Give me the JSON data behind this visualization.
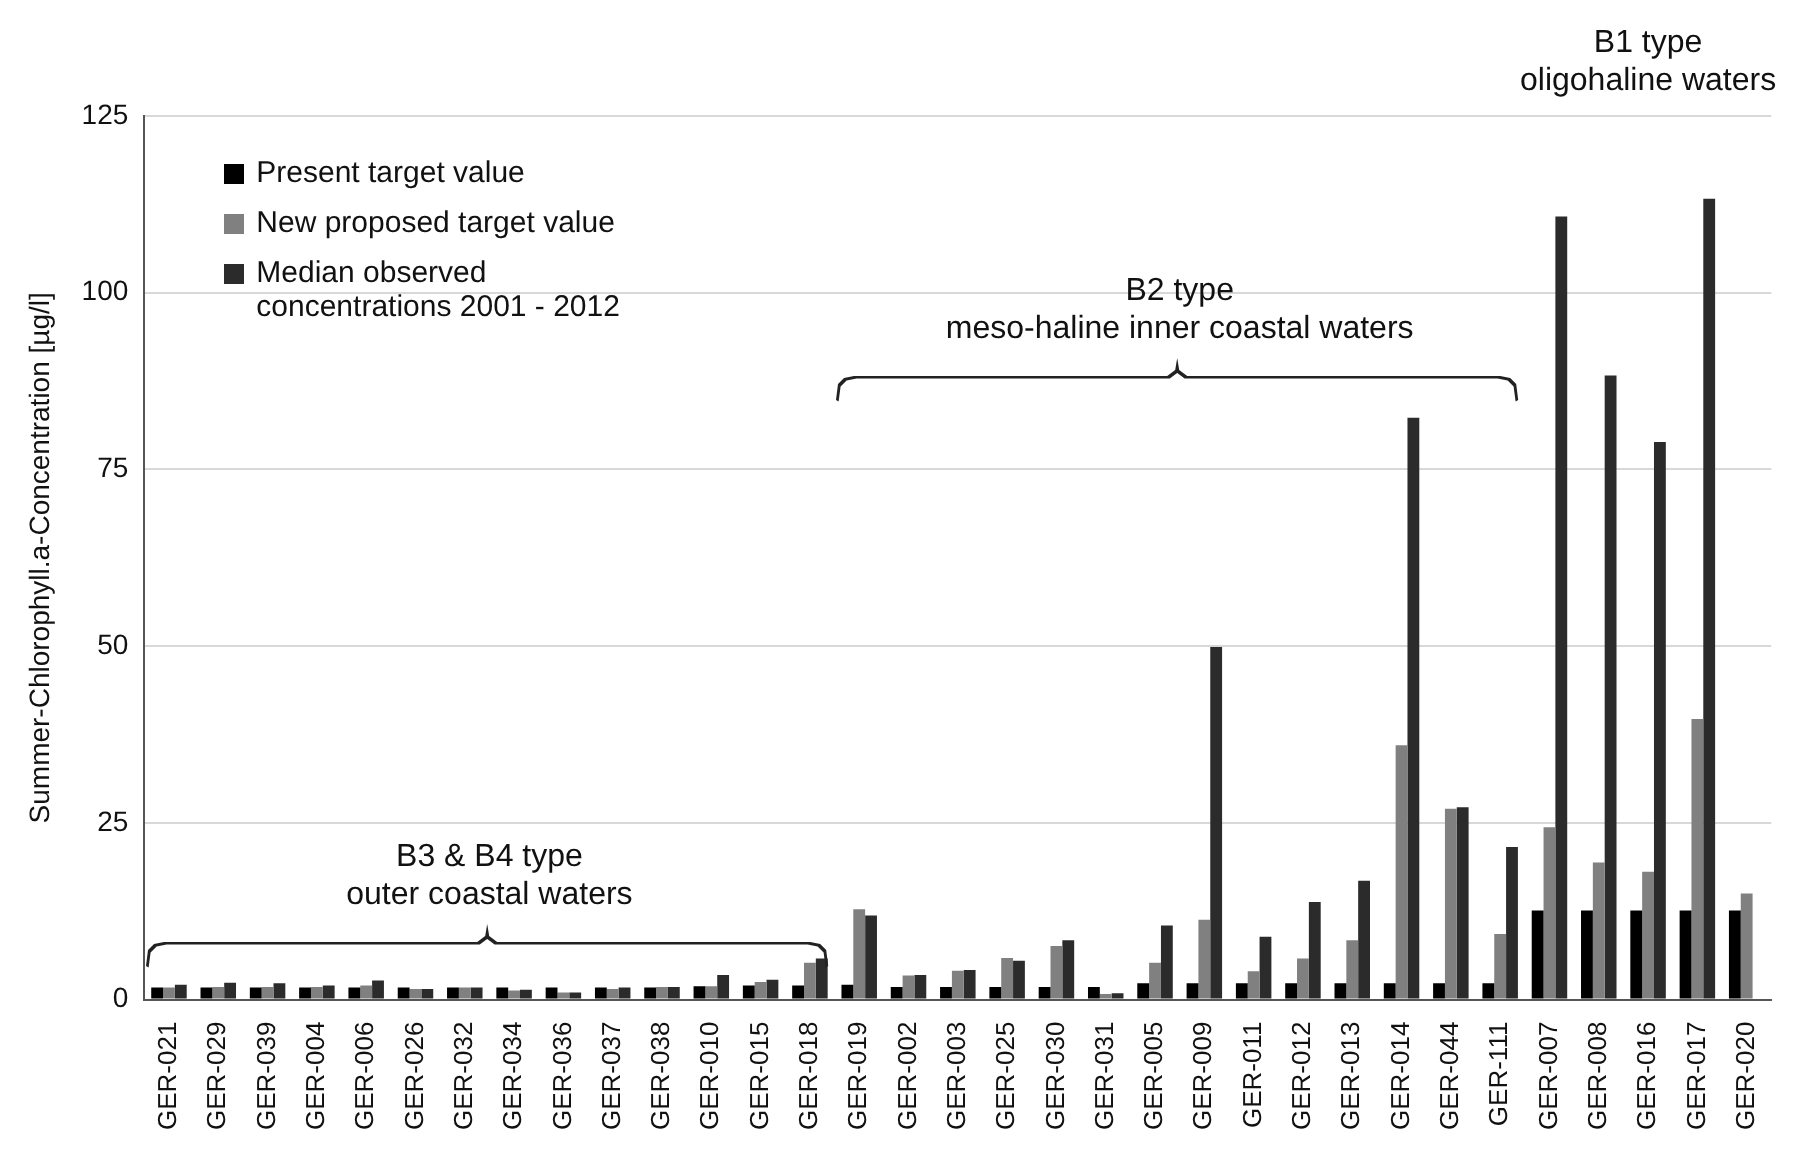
{
  "chart_data": {
    "type": "bar",
    "ylabel": "Summer-Chlorophyll.a-Concentration [µg/l]",
    "categories": [
      "GER-021",
      "GER-029",
      "GER-039",
      "GER-004",
      "GER-006",
      "GER-026",
      "GER-032",
      "GER-034",
      "GER-036",
      "GER-037",
      "GER-038",
      "GER-010",
      "GER-015",
      "GER-018",
      "GER-019",
      "GER-002",
      "GER-003",
      "GER-025",
      "GER-030",
      "GER-031",
      "GER-005",
      "GER-009",
      "GER-011",
      "GER-012",
      "GER-013",
      "GER-014",
      "GER-044",
      "GER-111",
      "GER-007",
      "GER-008",
      "GER-016",
      "GER-017",
      "GER-020"
    ],
    "series": [
      {
        "name": "Present target value",
        "color": "#000000",
        "values": [
          1.7,
          1.7,
          1.7,
          1.7,
          1.7,
          1.7,
          1.7,
          1.7,
          1.7,
          1.7,
          1.7,
          1.9,
          2.0,
          2.0,
          2.1,
          1.8,
          1.8,
          1.8,
          1.8,
          1.8,
          2.3,
          2.3,
          2.3,
          2.3,
          2.3,
          2.3,
          2.3,
          2.3,
          12.6,
          12.6,
          12.6,
          12.6,
          12.6
        ]
      },
      {
        "name": "New proposed target value",
        "color": "#808080",
        "values": [
          1.7,
          1.8,
          1.8,
          1.8,
          2.0,
          1.5,
          1.7,
          1.3,
          1.0,
          1.5,
          1.8,
          1.9,
          2.5,
          5.2,
          12.8,
          3.4,
          4.1,
          5.9,
          7.6,
          0.8,
          5.2,
          11.3,
          4.0,
          5.8,
          8.4,
          36,
          27.0,
          9.3,
          24.4,
          19.4,
          18.1,
          39.7,
          15.0
        ]
      },
      {
        "name": "Median observed concentrations 2001 - 2012",
        "color": "#2b2b2b",
        "values": [
          2.1,
          2.4,
          2.3,
          2.0,
          2.7,
          1.5,
          1.7,
          1.4,
          1.0,
          1.7,
          1.8,
          3.5,
          2.8,
          5.8,
          11.9,
          3.5,
          4.2,
          5.5,
          8.4,
          0.9,
          10.5,
          49.9,
          8.9,
          13.8,
          16.8,
          82.3,
          27.2,
          21.6,
          110.8,
          88.3,
          78.9,
          113.3,
          null
        ]
      }
    ],
    "ylim": [
      0,
      125
    ],
    "yticks": [
      0,
      25,
      50,
      75,
      100,
      125
    ],
    "grid": "y",
    "legend": "top left",
    "annotations": [
      "B3 & B4 type\nouter coastal waters",
      "B2 type\nmeso-haline inner coastal waters",
      "B1 type\noligohaline waters"
    ]
  }
}
